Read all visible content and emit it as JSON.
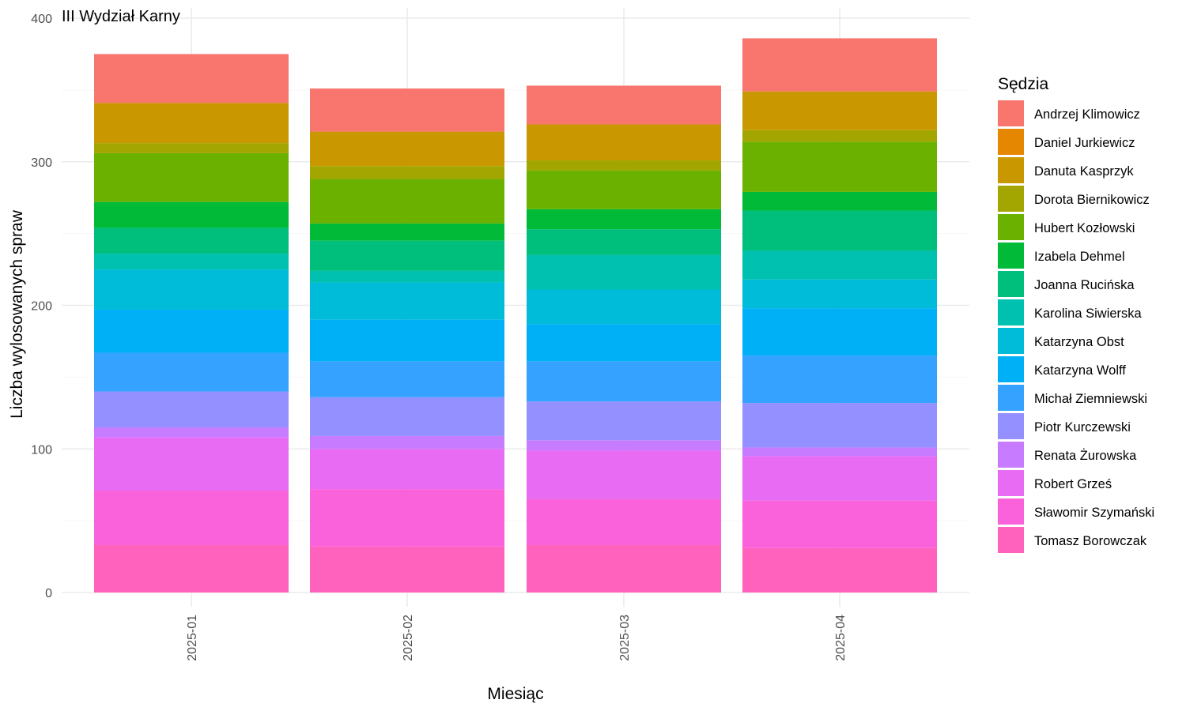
{
  "chart_data": {
    "type": "bar",
    "stacked": true,
    "title": "III Wydział Karny",
    "xlabel": "Miesiąc",
    "ylabel": "Liczba wylosowanych spraw",
    "ylim": [
      0,
      400
    ],
    "yticks": [
      "0",
      "100",
      "200",
      "300",
      "400"
    ],
    "grid": true,
    "legend_position": "right",
    "legend_title": "Sędzia",
    "categories": [
      "2025-01",
      "2025-02",
      "2025-03",
      "2025-04"
    ],
    "series": [
      {
        "name": "Andrzej Klimowicz",
        "color": "#F8766D",
        "values": [
          34,
          30,
          27,
          37
        ]
      },
      {
        "name": "Daniel Jurkiewicz",
        "color": "#E58700",
        "values": [
          0,
          0,
          0,
          0
        ]
      },
      {
        "name": "Danuta Kasprzyk",
        "color": "#C99800",
        "values": [
          28,
          24,
          25,
          27
        ]
      },
      {
        "name": "Dorota Biernikowicz",
        "color": "#A3A500",
        "values": [
          7,
          9,
          7,
          8
        ]
      },
      {
        "name": "Hubert Kozłowski",
        "color": "#6BB100",
        "values": [
          34,
          31,
          27,
          35
        ]
      },
      {
        "name": "Izabela Dehmel",
        "color": "#00BA38",
        "values": [
          18,
          12,
          14,
          13
        ]
      },
      {
        "name": "Joanna Rucińska",
        "color": "#00BF7D",
        "values": [
          18,
          21,
          18,
          28
        ]
      },
      {
        "name": "Karolina Siwierska",
        "color": "#00C0AF",
        "values": [
          11,
          8,
          24,
          20
        ]
      },
      {
        "name": "Katarzyna Obst",
        "color": "#00BCD8",
        "values": [
          28,
          26,
          24,
          20
        ]
      },
      {
        "name": "Katarzyna Wolff",
        "color": "#00B0F6",
        "values": [
          30,
          29,
          26,
          33
        ]
      },
      {
        "name": "Michał Ziemniewski",
        "color": "#35A2FF",
        "values": [
          27,
          25,
          28,
          33
        ]
      },
      {
        "name": "Piotr Kurczewski",
        "color": "#9590FF",
        "values": [
          25,
          27,
          27,
          31
        ]
      },
      {
        "name": "Renata Żurowska",
        "color": "#C77CFF",
        "values": [
          7,
          9,
          7,
          6
        ]
      },
      {
        "name": "Robert Grześ",
        "color": "#E76BF3",
        "values": [
          37,
          28,
          34,
          31
        ]
      },
      {
        "name": "Sławomir Szymański",
        "color": "#FA62DB",
        "values": [
          38,
          40,
          32,
          33
        ]
      },
      {
        "name": "Tomasz Borowczak",
        "color": "#FF62BC",
        "values": [
          33,
          32,
          33,
          31
        ]
      }
    ]
  }
}
